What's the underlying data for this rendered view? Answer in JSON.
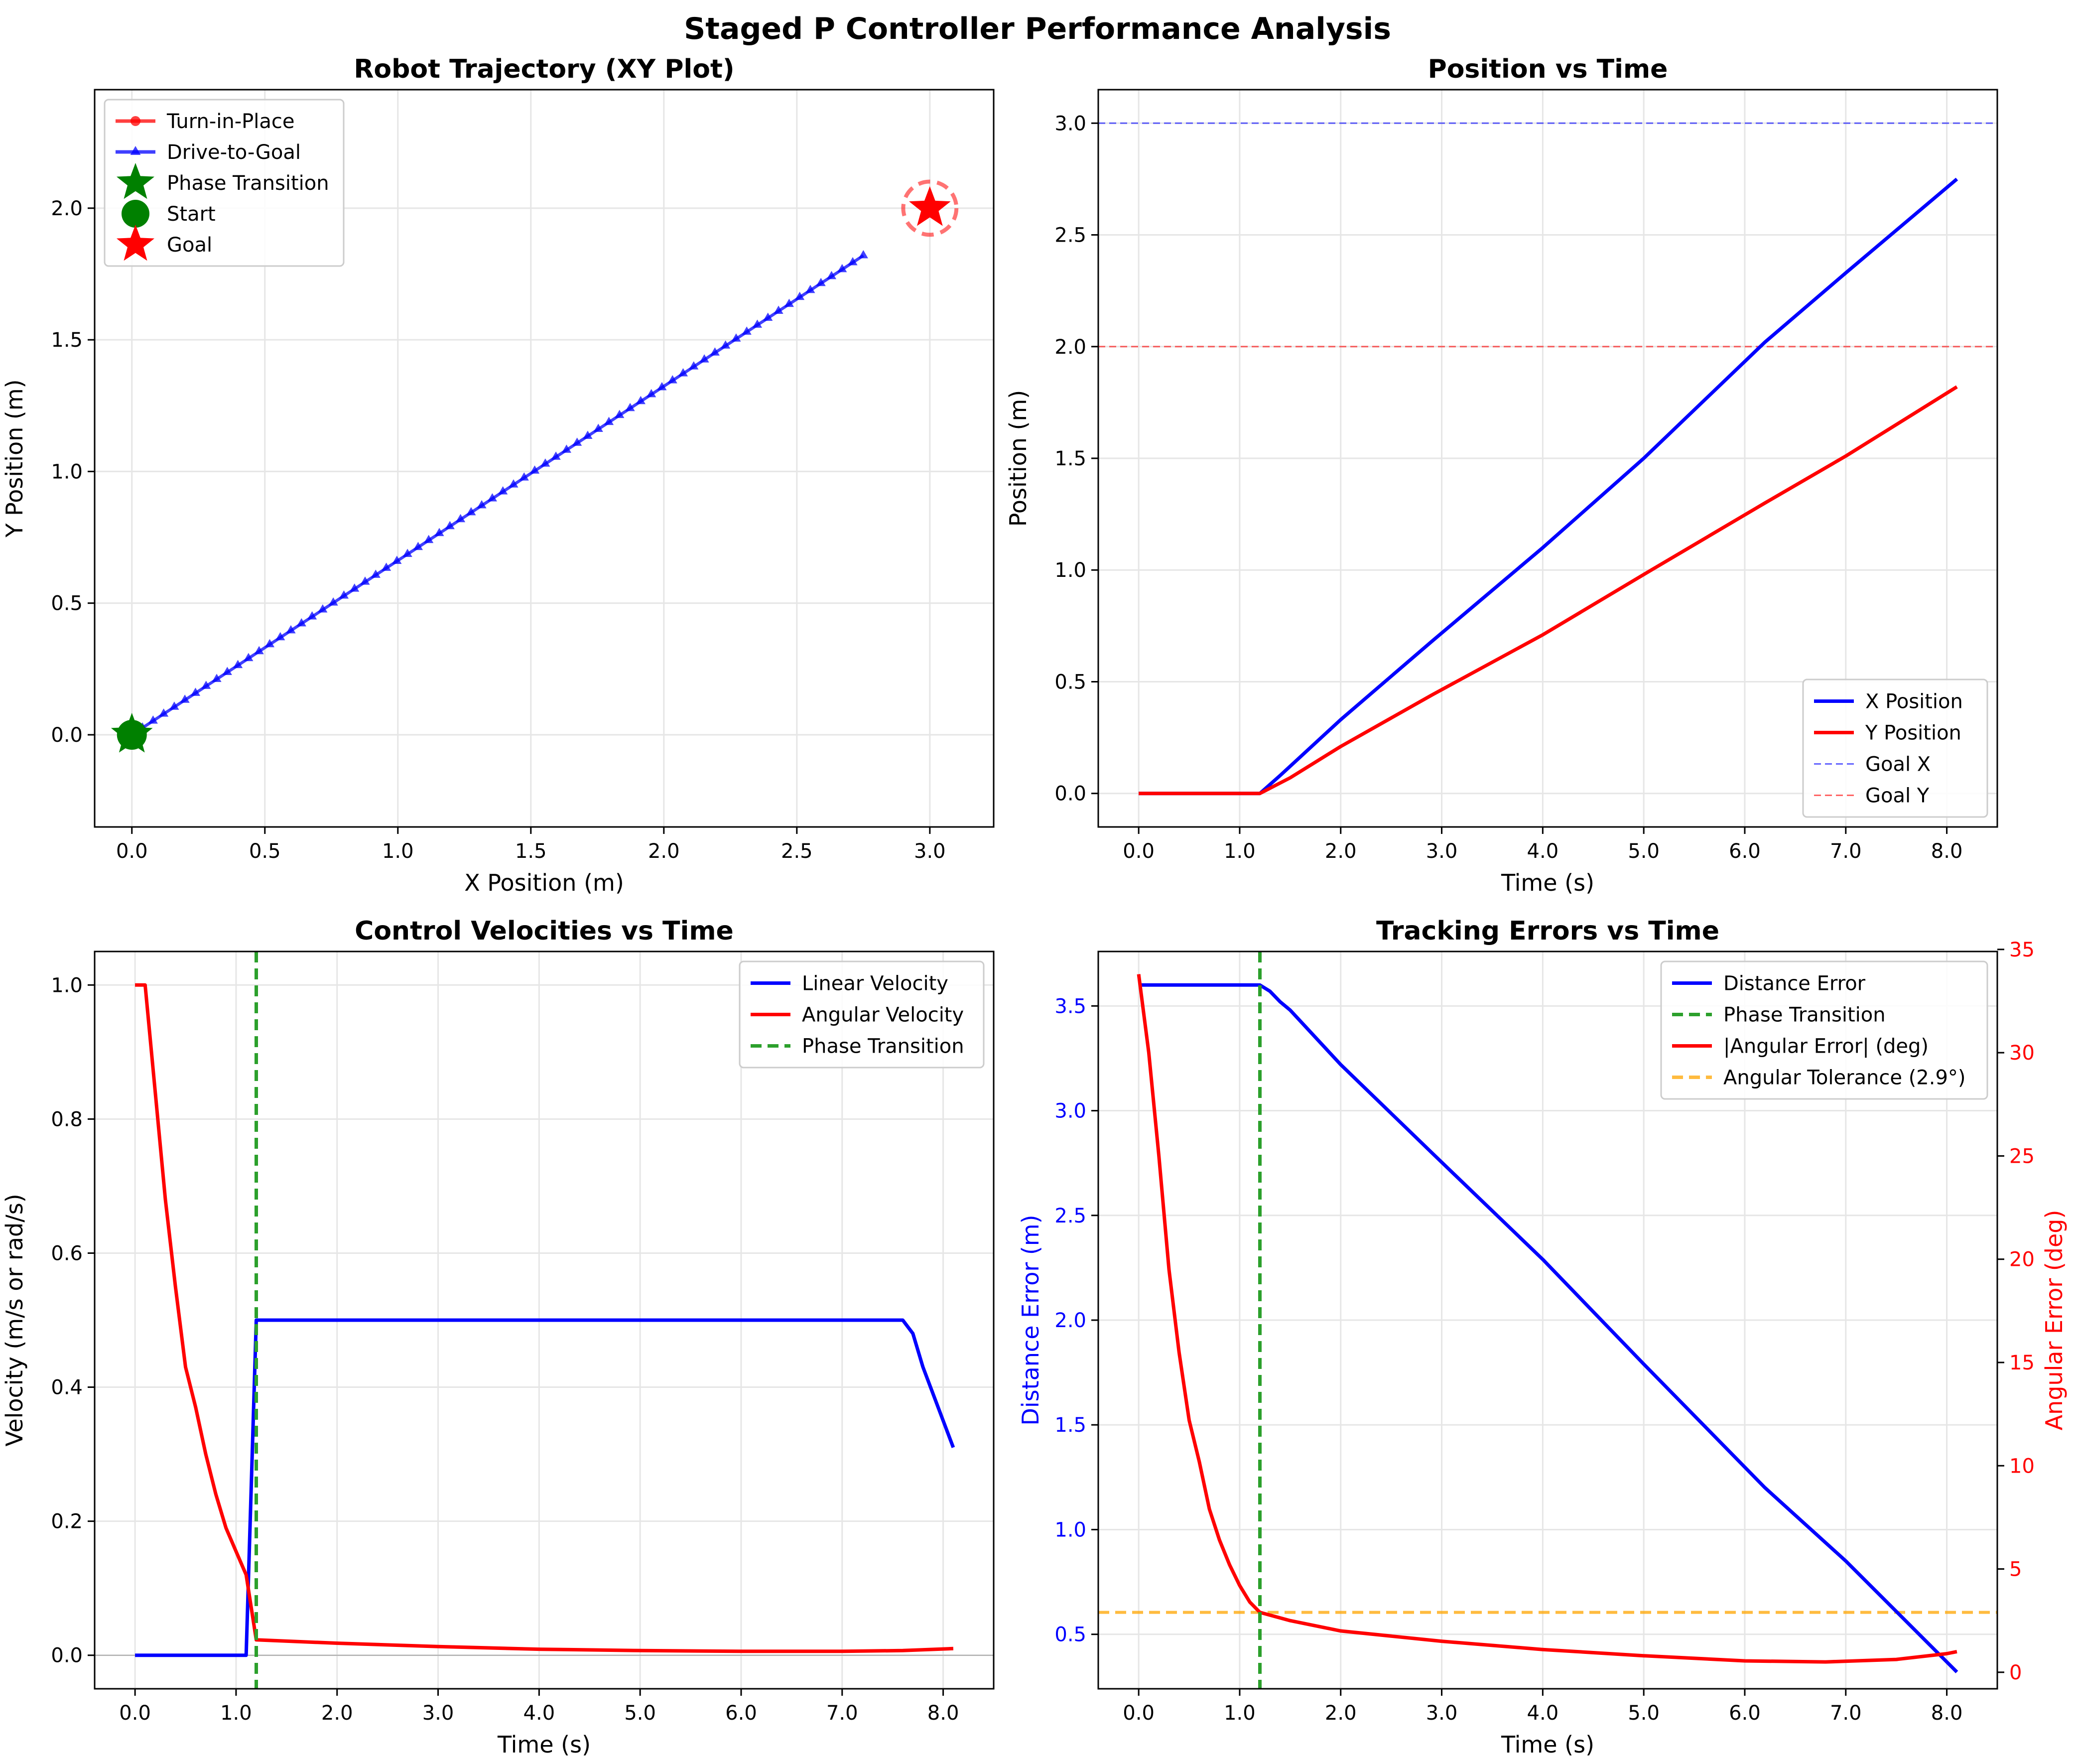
{
  "figure": {
    "title": "Staged P Controller Performance Analysis"
  },
  "colors": {
    "blue": "#0000ff",
    "red": "#ff0000",
    "green": "#008000",
    "phase_green": "#2ca02c",
    "tol_orange": "#ffa500",
    "grid": "#e6e6e6"
  },
  "chart_data": [
    {
      "id": "trajectory",
      "type": "line",
      "title": "Robot Trajectory (XY Plot)",
      "xlabel": "X Position (m)",
      "ylabel": "Y Position (m)",
      "xlim": [
        -0.14,
        3.24
      ],
      "ylim": [
        -0.35,
        2.45
      ],
      "xticks": [
        0.0,
        0.5,
        1.0,
        1.5,
        2.0,
        2.5,
        3.0
      ],
      "yticks": [
        0.0,
        0.5,
        1.0,
        1.5,
        2.0
      ],
      "tick_format": "0.0",
      "grid": true,
      "legend_position": "upper-left",
      "legend": [
        "Turn-in-Place",
        "Drive-to-Goal",
        "Phase Transition",
        "Start",
        "Goal"
      ],
      "series": [
        {
          "name": "Turn-in-Place",
          "color": "#ff0000",
          "marker": "circle",
          "x": [
            0,
            0
          ],
          "y": [
            0,
            0
          ]
        },
        {
          "name": "Drive-to-Goal",
          "color": "#0000ff",
          "marker": "triangle",
          "x_start": 0,
          "x_end": 2.75,
          "y_start": 0,
          "y_end": 1.82,
          "count": 70
        }
      ],
      "points": {
        "phase_transition": [
          0,
          0
        ],
        "start": [
          0,
          0
        ],
        "goal": [
          3.0,
          2.0
        ],
        "goal_tolerance_radius": 0.1
      }
    },
    {
      "id": "position",
      "type": "line",
      "title": "Position vs Time",
      "xlabel": "Time (s)",
      "ylabel": "Position (m)",
      "xlim": [
        -0.4,
        8.5
      ],
      "ylim": [
        -0.15,
        3.15
      ],
      "xticks": [
        0,
        1,
        2,
        3,
        4,
        5,
        6,
        7,
        8
      ],
      "yticks": [
        0.0,
        0.5,
        1.0,
        1.5,
        2.0,
        2.5,
        3.0
      ],
      "tick_format": "0.0",
      "grid": true,
      "legend_position": "lower-right",
      "legend": [
        "X Position",
        "Y Position",
        "Goal X",
        "Goal Y"
      ],
      "series": [
        {
          "name": "X Position",
          "color": "#0000ff",
          "x": [
            0,
            1.2,
            1.4,
            2.0,
            2.9,
            4.0,
            5.0,
            6.2,
            7.0,
            8.1
          ],
          "y": [
            0,
            0,
            0.08,
            0.33,
            0.68,
            1.1,
            1.5,
            2.02,
            2.33,
            2.75
          ]
        },
        {
          "name": "Y Position",
          "color": "#ff0000",
          "x": [
            0,
            1.2,
            1.5,
            2.0,
            2.9,
            4.0,
            5.0,
            6.2,
            7.0,
            8.1
          ],
          "y": [
            0,
            0,
            0.07,
            0.21,
            0.44,
            0.71,
            0.98,
            1.3,
            1.51,
            1.82
          ]
        }
      ],
      "hlines": [
        {
          "name": "Goal X",
          "y": 3.0,
          "color": "#0000ff"
        },
        {
          "name": "Goal Y",
          "y": 2.0,
          "color": "#ff0000"
        }
      ]
    },
    {
      "id": "velocities",
      "type": "line",
      "title": "Control Velocities vs Time",
      "xlabel": "Time (s)",
      "ylabel": "Velocity (m/s or rad/s)",
      "xlim": [
        -0.4,
        8.5
      ],
      "ylim": [
        -0.05,
        1.05
      ],
      "xticks": [
        0,
        1,
        2,
        3,
        4,
        5,
        6,
        7,
        8
      ],
      "yticks": [
        0.0,
        0.2,
        0.4,
        0.6,
        0.8,
        1.0
      ],
      "tick_format": "0.0",
      "grid": true,
      "legend_position": "upper-right",
      "legend": [
        "Linear Velocity",
        "Angular Velocity",
        "Phase Transition"
      ],
      "series": [
        {
          "name": "Linear Velocity",
          "color": "#0000ff",
          "x": [
            0,
            1.1,
            1.2,
            7.6,
            7.7,
            7.8,
            7.9,
            8.0,
            8.1
          ],
          "y": [
            0,
            0,
            0.5,
            0.5,
            0.48,
            0.43,
            0.39,
            0.35,
            0.31
          ]
        },
        {
          "name": "Angular Velocity",
          "color": "#ff0000",
          "x": [
            0,
            0.1,
            0.2,
            0.3,
            0.4,
            0.5,
            0.6,
            0.7,
            0.8,
            0.9,
            1.0,
            1.1,
            1.2,
            2.0,
            3.0,
            4.0,
            5.0,
            6.0,
            7.0,
            7.6,
            8.1
          ],
          "y": [
            1.0,
            1.0,
            0.84,
            0.68,
            0.55,
            0.43,
            0.37,
            0.3,
            0.24,
            0.19,
            0.155,
            0.12,
            0.023,
            0.018,
            0.013,
            0.009,
            0.007,
            0.006,
            0.006,
            0.007,
            0.01
          ]
        }
      ],
      "vlines": [
        {
          "name": "Phase Transition",
          "x": 1.2,
          "color": "#2ca02c"
        }
      ],
      "hlines": [
        {
          "y": 0,
          "color": "#999999"
        }
      ]
    },
    {
      "id": "errors",
      "type": "line",
      "title": "Tracking Errors vs Time",
      "xlabel": "Time (s)",
      "ylabel": "Distance Error (m)",
      "ylabel_right": "Angular Error (deg)",
      "xlim": [
        -0.4,
        8.5
      ],
      "ylim": [
        0.24,
        3.76
      ],
      "ylim_right": [
        -0.8,
        34.9
      ],
      "xticks": [
        0,
        1,
        2,
        3,
        4,
        5,
        6,
        7,
        8
      ],
      "yticks": [
        0.5,
        1.0,
        1.5,
        2.0,
        2.5,
        3.0,
        3.5
      ],
      "yticks_right": [
        0,
        5,
        10,
        15,
        20,
        25,
        30,
        35
      ],
      "tick_format": "0.0",
      "grid": true,
      "legend_position": "upper-right",
      "legend": [
        "Distance Error",
        "Phase Transition",
        "|Angular Error| (deg)",
        "Angular Tolerance (2.9°)"
      ],
      "series": [
        {
          "name": "Distance Error",
          "color": "#0000ff",
          "axis": "left",
          "x": [
            0,
            1.2,
            1.3,
            1.4,
            1.5,
            2.0,
            2.9,
            4.0,
            5.0,
            6.2,
            7.0,
            8.1
          ],
          "y": [
            3.6,
            3.6,
            3.57,
            3.52,
            3.48,
            3.22,
            2.8,
            2.29,
            1.79,
            1.2,
            0.85,
            0.32
          ]
        },
        {
          "name": "|Angular Error| (deg)",
          "color": "#ff0000",
          "axis": "right",
          "x": [
            0,
            0.1,
            0.2,
            0.3,
            0.4,
            0.5,
            0.6,
            0.7,
            0.8,
            0.9,
            1.0,
            1.1,
            1.2,
            1.5,
            2.0,
            3.0,
            4.0,
            5.0,
            6.0,
            6.8,
            7.5,
            8.0,
            8.1
          ],
          "y": [
            33.8,
            30.0,
            25.0,
            19.5,
            15.5,
            12.2,
            10.2,
            7.9,
            6.4,
            5.2,
            4.2,
            3.4,
            2.9,
            2.5,
            2.0,
            1.5,
            1.1,
            0.8,
            0.55,
            0.5,
            0.62,
            0.9,
            1.0
          ]
        }
      ],
      "vlines": [
        {
          "name": "Phase Transition",
          "x": 1.2,
          "color": "#2ca02c"
        }
      ],
      "hlines_right": [
        {
          "name": "Angular Tolerance (2.9°)",
          "y": 2.9,
          "color": "#ffa500"
        }
      ]
    }
  ]
}
